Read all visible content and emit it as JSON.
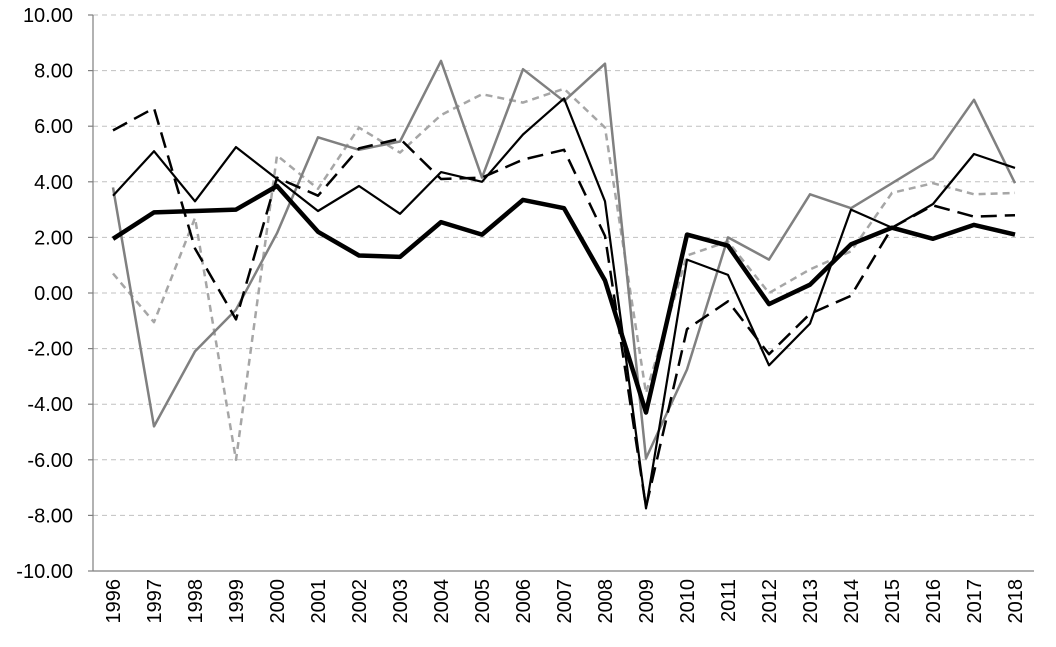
{
  "chart_data": {
    "type": "line",
    "title": "",
    "xlabel": "",
    "ylabel": "",
    "ylim": [
      -10,
      10
    ],
    "y_ticks": [
      10,
      8,
      6,
      4,
      2,
      0,
      -2,
      -4,
      -6,
      -8,
      -10
    ],
    "y_tick_labels": [
      "10.00",
      "8.00",
      "6.00",
      "4.00",
      "2.00",
      "0.00",
      "-2.00",
      "-4.00",
      "-6.00",
      "-8.00",
      "-10.00"
    ],
    "grid": "horizontal dashed",
    "legend": "none",
    "categories": [
      "1996",
      "1997",
      "1998",
      "1999",
      "2000",
      "2001",
      "2002",
      "2003",
      "2004",
      "2005",
      "2006",
      "2007",
      "2008",
      "2009",
      "2010",
      "2011",
      "2012",
      "2013",
      "2014",
      "2015",
      "2016",
      "2017",
      "2018"
    ],
    "series": [
      {
        "style": "thick-black-solid",
        "color": "#000000",
        "values": [
          1.95,
          2.9,
          2.95,
          3.0,
          3.85,
          2.2,
          1.35,
          1.3,
          2.55,
          2.1,
          3.35,
          3.05,
          0.45,
          -4.3,
          2.1,
          1.7,
          -0.4,
          0.3,
          1.75,
          2.35,
          1.95,
          2.45,
          2.1
        ]
      },
      {
        "style": "thin-black-solid",
        "color": "#000000",
        "values": [
          3.5,
          5.1,
          3.3,
          5.25,
          4.1,
          2.95,
          3.85,
          2.85,
          4.35,
          4.0,
          5.7,
          7.0,
          3.3,
          -7.75,
          1.2,
          0.65,
          -2.6,
          -1.1,
          3.0,
          2.35,
          3.2,
          5.0,
          4.5
        ]
      },
      {
        "style": "black-dashed",
        "color": "#000000",
        "values": [
          5.85,
          6.65,
          1.6,
          -0.95,
          4.15,
          3.5,
          5.2,
          5.55,
          4.1,
          4.15,
          4.8,
          5.15,
          2.05,
          -7.7,
          -1.3,
          -0.3,
          -2.2,
          -0.75,
          -0.1,
          2.35,
          3.15,
          2.75,
          2.8
        ]
      },
      {
        "style": "gray-solid",
        "color": "#808080",
        "values": [
          3.8,
          -4.8,
          -2.1,
          -0.6,
          2.15,
          5.6,
          5.15,
          5.45,
          8.35,
          4.15,
          8.05,
          6.9,
          8.25,
          -5.95,
          -2.75,
          2.0,
          1.2,
          3.55,
          3.05,
          3.95,
          4.85,
          6.95,
          3.95
        ]
      },
      {
        "style": "light-gray-dashed",
        "color": "#a6a6a6",
        "values": [
          0.7,
          -1.05,
          2.7,
          -6.0,
          4.95,
          3.75,
          5.95,
          5.05,
          6.4,
          7.15,
          6.85,
          7.35,
          5.95,
          -3.6,
          1.35,
          1.85,
          0.0,
          0.85,
          1.5,
          3.6,
          3.95,
          3.55,
          3.6
        ]
      }
    ]
  }
}
